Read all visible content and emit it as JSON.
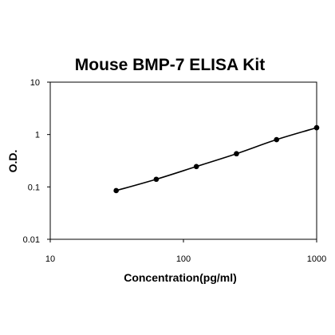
{
  "chart_data": {
    "type": "scatter",
    "title": "Mouse BMP-7 ELISA Kit",
    "xlabel": "Concentration(pg/ml)",
    "ylabel": "O.D.",
    "x_scale": "log",
    "y_scale": "log",
    "xlim": [
      10,
      1000
    ],
    "ylim": [
      0.01,
      10
    ],
    "x_ticks": [
      10,
      100,
      1000
    ],
    "x_tick_labels": [
      "10",
      "100",
      "1000"
    ],
    "y_ticks": [
      0.01,
      0.1,
      1,
      10
    ],
    "y_tick_labels": [
      "0.01",
      "0.1",
      "1",
      "10"
    ],
    "grid": false,
    "legend": "none",
    "series": [
      {
        "points": [
          {
            "x": 31.25,
            "y": 0.085
          },
          {
            "x": 62.5,
            "y": 0.14
          },
          {
            "x": 125,
            "y": 0.245
          },
          {
            "x": 250,
            "y": 0.43
          },
          {
            "x": 500,
            "y": 0.8
          },
          {
            "x": 1000,
            "y": 1.35
          }
        ],
        "fit_curve": true,
        "color": "#000000"
      }
    ]
  }
}
